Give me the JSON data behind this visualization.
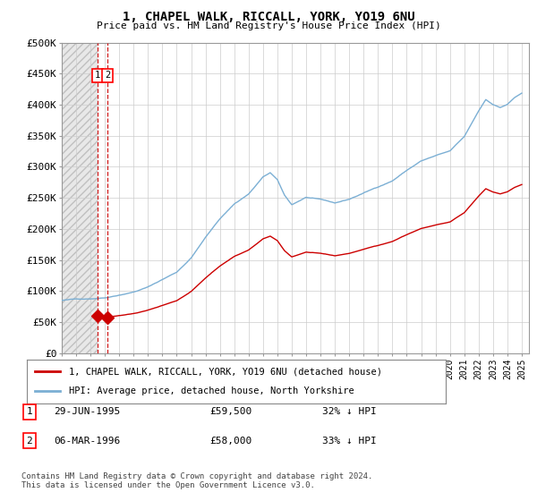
{
  "title": "1, CHAPEL WALK, RICCALL, YORK, YO19 6NU",
  "subtitle": "Price paid vs. HM Land Registry's House Price Index (HPI)",
  "ylim": [
    0,
    500000
  ],
  "yticks": [
    0,
    50000,
    100000,
    150000,
    200000,
    250000,
    300000,
    350000,
    400000,
    450000,
    500000
  ],
  "ytick_labels": [
    "£0",
    "£50K",
    "£100K",
    "£150K",
    "£200K",
    "£250K",
    "£300K",
    "£350K",
    "£400K",
    "£450K",
    "£500K"
  ],
  "xlim_start": 1993.0,
  "xlim_end": 2025.5,
  "hpi_color": "#7bafd4",
  "price_color": "#cc0000",
  "sale1_date_x": 1995.49,
  "sale1_price": 59500,
  "sale2_date_x": 1996.17,
  "sale2_price": 58000,
  "sale1_label": "29-JUN-1995",
  "sale2_label": "06-MAR-1996",
  "sale1_pct": "32% ↓ HPI",
  "sale2_pct": "33% ↓ HPI",
  "legend_line1": "1, CHAPEL WALK, RICCALL, YORK, YO19 6NU (detached house)",
  "legend_line2": "HPI: Average price, detached house, North Yorkshire",
  "footnote": "Contains HM Land Registry data © Crown copyright and database right 2024.\nThis data is licensed under the Open Government Licence v3.0.",
  "background_color": "#ffffff",
  "grid_color": "#cccccc"
}
